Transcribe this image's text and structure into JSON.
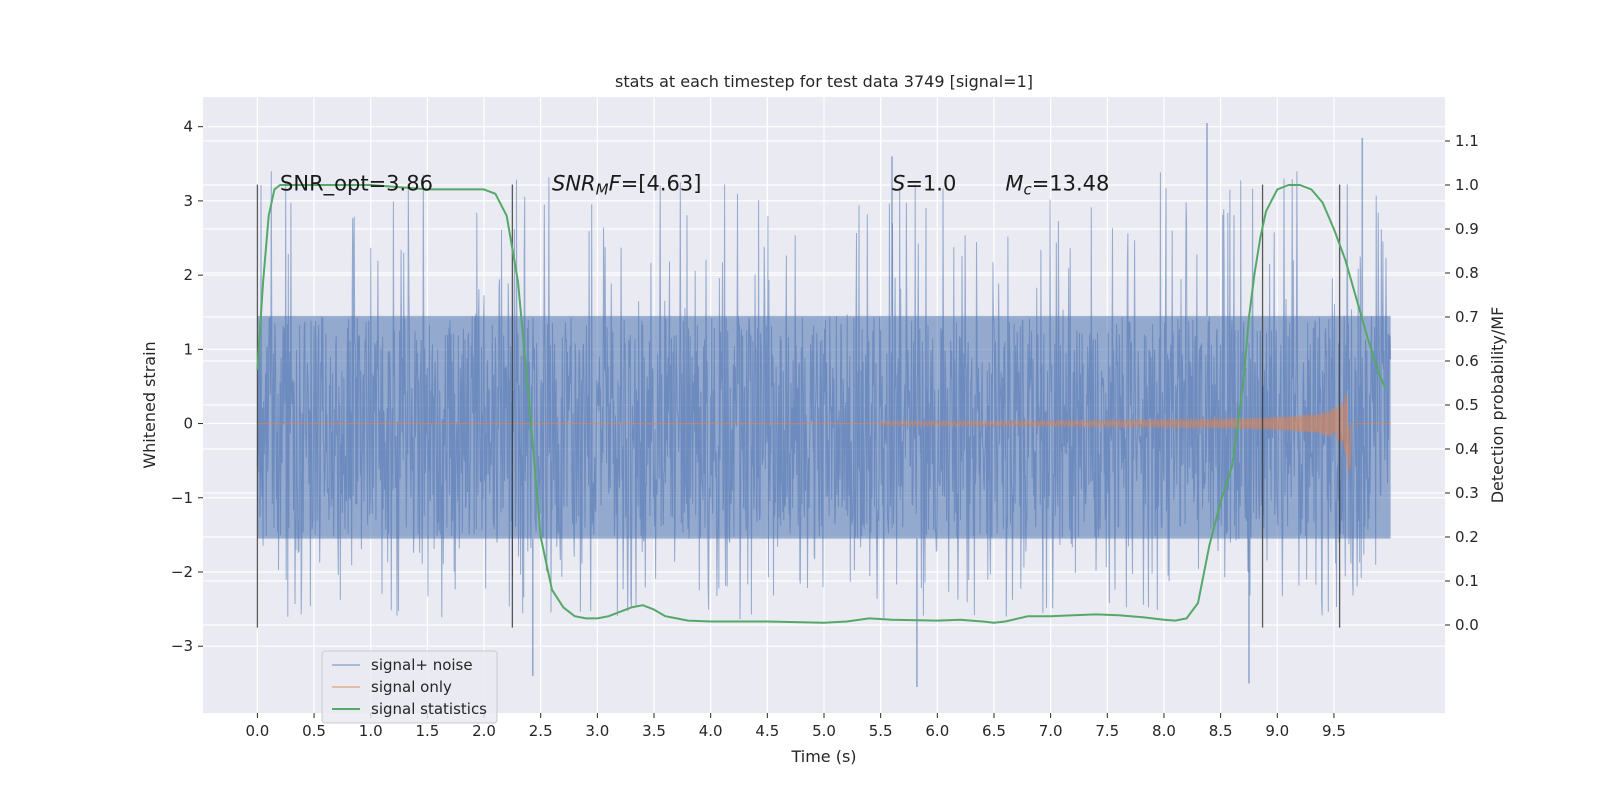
{
  "chart_data": {
    "type": "line",
    "title": "stats at each timestep for test data 3749 [signal=1]",
    "xlabel": "Time (s)",
    "ylabel": "Whitened strain",
    "y2label": "Detection probability/MF",
    "xlim": [
      -0.48,
      10.48
    ],
    "ylim": [
      -3.9,
      4.4
    ],
    "y2lim": [
      -0.2,
      1.2
    ],
    "xticks": [
      0.0,
      0.5,
      1.0,
      1.5,
      2.0,
      2.5,
      3.0,
      3.5,
      4.0,
      4.5,
      5.0,
      5.5,
      6.0,
      6.5,
      7.0,
      7.5,
      8.0,
      8.5,
      9.0,
      9.5
    ],
    "xtick_labels": [
      "0.0",
      "0.5",
      "1.0",
      "1.5",
      "2.0",
      "2.5",
      "3.0",
      "3.5",
      "4.0",
      "4.5",
      "5.0",
      "5.5",
      "6.0",
      "6.5",
      "7.0",
      "7.5",
      "8.0",
      "8.5",
      "9.0",
      "9.5"
    ],
    "yticks": [
      -3,
      -2,
      -1,
      0,
      1,
      2,
      3,
      4
    ],
    "ytick_labels": [
      "−3",
      "−2",
      "−1",
      "0",
      "1",
      "2",
      "3",
      "4"
    ],
    "y2ticks": [
      0.0,
      0.1,
      0.2,
      0.3,
      0.4,
      0.5,
      0.6,
      0.7,
      0.8,
      0.9,
      1.0,
      1.1
    ],
    "y2tick_labels": [
      "0.0",
      "0.1",
      "0.2",
      "0.3",
      "0.4",
      "0.5",
      "0.6",
      "0.7",
      "0.8",
      "0.9",
      "1.0",
      "1.1"
    ],
    "grid": true,
    "legend_position": "lower-left",
    "annotations": [
      {
        "x": 0.2,
        "y": 3.25,
        "text": "SNR_opt=3.86",
        "math": false
      },
      {
        "x": 2.6,
        "y": 3.25,
        "math": true,
        "parts": [
          {
            "t": "SNR",
            "style": "italic",
            "shift": "none"
          },
          {
            "t": "M",
            "style": "italic",
            "shift": "sub"
          },
          {
            "t": "F",
            "style": "italic",
            "shift": "none"
          },
          {
            "t": "=[4.63]",
            "style": "normal",
            "shift": "none"
          }
        ]
      },
      {
        "x": 5.6,
        "y": 3.25,
        "math": true,
        "parts": [
          {
            "t": "S",
            "style": "italic",
            "shift": "none"
          },
          {
            "t": "=1.0",
            "style": "normal",
            "shift": "none"
          }
        ]
      },
      {
        "x": 6.6,
        "y": 3.25,
        "math": true,
        "parts": [
          {
            "t": "M",
            "style": "italic",
            "shift": "none"
          },
          {
            "t": "c",
            "style": "italic",
            "shift": "sub"
          },
          {
            "t": "=13.48",
            "style": "normal",
            "shift": "none"
          }
        ]
      }
    ],
    "vlines": [
      {
        "x": 0.0,
        "ymin": -2.75,
        "ymax": 3.22
      },
      {
        "x": 2.25,
        "ymin": -2.75,
        "ymax": 3.22
      },
      {
        "x": 8.87,
        "ymin": -2.75,
        "ymax": 3.22
      },
      {
        "x": 9.55,
        "ymin": -2.75,
        "ymax": 3.22
      }
    ],
    "series": [
      {
        "name": "signal+ noise",
        "axis": "left",
        "color": "#4c72b0",
        "alpha": 0.55,
        "x_range": [
          0.0,
          10.0
        ],
        "envelope": {
          "core": [
            -1.55,
            1.45
          ],
          "spike_max": 4.05,
          "spike_min": -3.55
        },
        "notable_extrema": [
          {
            "x": 8.38,
            "y": 4.05
          },
          {
            "x": 9.75,
            "y": 3.85
          },
          {
            "x": 5.6,
            "y": 3.6
          },
          {
            "x": 5.82,
            "y": -3.55
          },
          {
            "x": 8.75,
            "y": -3.5
          },
          {
            "x": 2.43,
            "y": -3.4
          }
        ]
      },
      {
        "name": "signal only",
        "axis": "left",
        "color": "#dd8452",
        "alpha": 0.6,
        "x_range": [
          0.0,
          10.0
        ],
        "chirp": {
          "onset": 5.5,
          "peak_time": 9.63,
          "peak_amplitude": 0.82,
          "min_amplitude": -0.63
        }
      },
      {
        "name": "signal statistics",
        "axis": "right",
        "color": "#55a868",
        "x": [
          0.0,
          0.05,
          0.1,
          0.15,
          0.2,
          0.3,
          0.5,
          1.0,
          1.5,
          1.9,
          2.0,
          2.1,
          2.2,
          2.3,
          2.4,
          2.5,
          2.6,
          2.7,
          2.8,
          2.9,
          3.0,
          3.1,
          3.2,
          3.3,
          3.4,
          3.5,
          3.6,
          3.7,
          3.8,
          4.0,
          4.5,
          5.0,
          5.2,
          5.4,
          5.6,
          6.0,
          6.2,
          6.4,
          6.5,
          6.6,
          6.8,
          7.0,
          7.2,
          7.4,
          7.6,
          7.8,
          8.0,
          8.1,
          8.2,
          8.3,
          8.4,
          8.5,
          8.6,
          8.7,
          8.75,
          8.8,
          8.85,
          8.9,
          9.0,
          9.1,
          9.2,
          9.3,
          9.4,
          9.5,
          9.6,
          9.7,
          9.8,
          9.9,
          9.95
        ],
        "y": [
          0.58,
          0.78,
          0.93,
          0.99,
          1.0,
          1.0,
          1.0,
          1.0,
          0.99,
          0.99,
          0.99,
          0.98,
          0.93,
          0.78,
          0.5,
          0.2,
          0.08,
          0.04,
          0.02,
          0.015,
          0.015,
          0.02,
          0.03,
          0.04,
          0.045,
          0.035,
          0.02,
          0.015,
          0.01,
          0.008,
          0.008,
          0.005,
          0.008,
          0.015,
          0.012,
          0.01,
          0.012,
          0.008,
          0.005,
          0.008,
          0.02,
          0.02,
          0.022,
          0.024,
          0.022,
          0.018,
          0.012,
          0.01,
          0.015,
          0.05,
          0.18,
          0.28,
          0.36,
          0.55,
          0.7,
          0.8,
          0.88,
          0.94,
          0.99,
          1.0,
          1.0,
          0.99,
          0.96,
          0.9,
          0.83,
          0.74,
          0.65,
          0.57,
          0.54
        ]
      }
    ]
  }
}
